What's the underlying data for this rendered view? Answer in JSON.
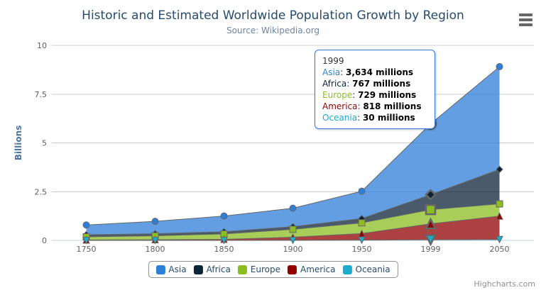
{
  "header": {
    "title": "Historic and Estimated Worldwide Population Growth by Region",
    "subtitle": "Source: Wikipedia.org"
  },
  "chart_data": {
    "type": "area",
    "stacking": "normal",
    "title": "Historic and Estimated Worldwide Population Growth by Region",
    "subtitle": "Source: Wikipedia.org",
    "categories": [
      "1750",
      "1800",
      "1850",
      "1900",
      "1950",
      "1999",
      "2050"
    ],
    "series": [
      {
        "name": "Asia",
        "color": "#2f7ed8",
        "marker": "circle",
        "values": [
          502,
          635,
          809,
          947,
          1402,
          3634,
          5268
        ]
      },
      {
        "name": "Africa",
        "color": "#0d233a",
        "marker": "diamond",
        "values": [
          106,
          107,
          111,
          133,
          221,
          767,
          1766
        ]
      },
      {
        "name": "Europe",
        "color": "#8bbc21",
        "marker": "square",
        "values": [
          163,
          203,
          276,
          408,
          547,
          729,
          628
        ]
      },
      {
        "name": "America",
        "color": "#910000",
        "marker": "triangle",
        "values": [
          18,
          31,
          54,
          156,
          339,
          818,
          1201
        ]
      },
      {
        "name": "Oceania",
        "color": "#1aadce",
        "marker": "triangle-down",
        "values": [
          2,
          2,
          2,
          6,
          13,
          30,
          46
        ]
      }
    ],
    "values_unit": "millions",
    "ylabel": "Billions",
    "ylim": [
      0,
      10
    ],
    "yticks": [
      {
        "value": 0,
        "label": "0"
      },
      {
        "value": 2.5,
        "label": "2.5"
      },
      {
        "value": 5,
        "label": "5"
      },
      {
        "value": 7.5,
        "label": "7.5"
      },
      {
        "value": 10,
        "label": "10"
      }
    ],
    "grid": true,
    "legend_position": "bottom",
    "hovered_index": 5,
    "fill_opacity": 0.75,
    "line_color": "#666666"
  },
  "tooltip": {
    "header": "1999",
    "rows": [
      {
        "name": "Asia",
        "separator": ": ",
        "value": "3,634 millions",
        "color": "#2f7ed8"
      },
      {
        "name": "Africa",
        "separator": ": ",
        "value": "767 millions",
        "color": "#0d233a"
      },
      {
        "name": "Europe",
        "separator": ": ",
        "value": "729 millions",
        "color": "#8bbc21"
      },
      {
        "name": "America",
        "separator": ": ",
        "value": "818 millions",
        "color": "#910000"
      },
      {
        "name": "Oceania",
        "separator": ": ",
        "value": "30 millions",
        "color": "#1aadce"
      }
    ],
    "border_color": "#2f7ed8"
  },
  "legend": {
    "items": [
      {
        "label": "Asia",
        "color": "#2f7ed8"
      },
      {
        "label": "Africa",
        "color": "#0d233a"
      },
      {
        "label": "Europe",
        "color": "#8bbc21"
      },
      {
        "label": "America",
        "color": "#910000"
      },
      {
        "label": "Oceania",
        "color": "#1aadce"
      }
    ]
  },
  "icons": {
    "menu": "hamburger-icon"
  },
  "colors": {
    "title": "#274b6d",
    "subtitle": "#6d869f",
    "axis_labels": "#606060",
    "y_axis_title": "#4d759e",
    "grid_line": "#cccccc",
    "axis_line": "#c0d0e0",
    "legend_text": "#274b6d",
    "legend_border": "#909090",
    "credits_text": "#909090"
  },
  "credits": "Highcharts.com"
}
